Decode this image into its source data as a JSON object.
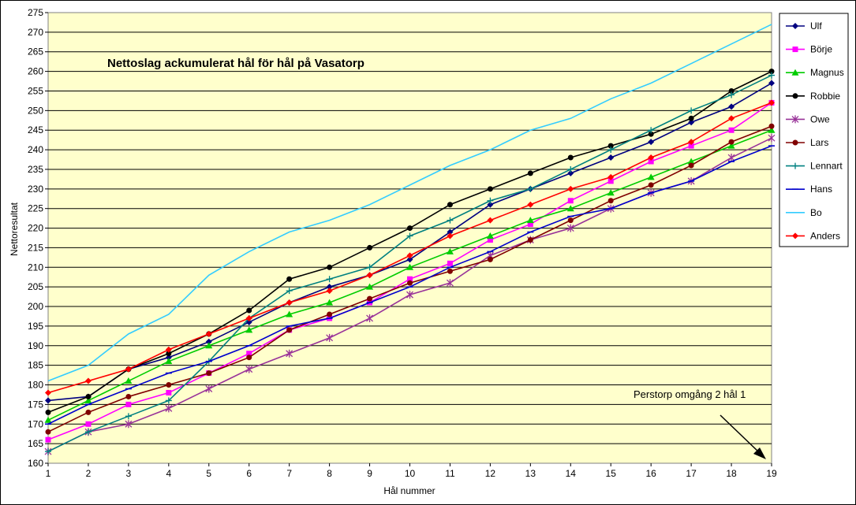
{
  "chart_data": {
    "type": "line",
    "title": "Nettoslag ackumulerat hål för hål på Vasatorp",
    "xlabel": "Hål nummer",
    "ylabel": "Nettoresultat",
    "x": [
      1,
      2,
      3,
      4,
      5,
      6,
      7,
      8,
      9,
      10,
      11,
      12,
      13,
      14,
      15,
      16,
      17,
      18,
      19
    ],
    "xlim": [
      1,
      19
    ],
    "ylim": [
      160,
      275
    ],
    "ytick_step": 5,
    "grid": "horizontal",
    "legend_position": "right",
    "plot_background": "#FFFFCC",
    "annotation": "Perstorp omgång 2 hål 1",
    "series": [
      {
        "name": "Ulf",
        "color": "#000080",
        "marker": "diamond",
        "values": [
          176,
          177,
          184,
          187,
          191,
          196,
          201,
          205,
          208,
          212,
          219,
          226,
          230,
          234,
          238,
          242,
          247,
          251,
          257
        ]
      },
      {
        "name": "Börje",
        "color": "#FF00FF",
        "marker": "square",
        "values": [
          166,
          170,
          175,
          178,
          183,
          188,
          194,
          197,
          201,
          207,
          211,
          217,
          221,
          227,
          232,
          237,
          241,
          245,
          252
        ]
      },
      {
        "name": "Magnus",
        "color": "#00CC00",
        "marker": "triangle",
        "values": [
          171,
          176,
          181,
          186,
          190,
          194,
          198,
          201,
          205,
          210,
          214,
          218,
          222,
          225,
          229,
          233,
          237,
          241,
          245
        ]
      },
      {
        "name": "Robbie",
        "color": "#000000",
        "marker": "circle",
        "values": [
          173,
          177,
          184,
          188,
          193,
          199,
          207,
          210,
          215,
          220,
          226,
          230,
          234,
          238,
          241,
          244,
          248,
          255,
          260
        ]
      },
      {
        "name": "Owe",
        "color": "#993399",
        "marker": "star",
        "values": [
          163,
          168,
          170,
          174,
          179,
          184,
          188,
          192,
          197,
          203,
          206,
          213,
          217,
          220,
          225,
          229,
          232,
          238,
          243
        ]
      },
      {
        "name": "Lars",
        "color": "#800000",
        "marker": "circle",
        "values": [
          168,
          173,
          177,
          180,
          183,
          187,
          194,
          198,
          202,
          206,
          209,
          212,
          217,
          222,
          227,
          231,
          236,
          242,
          246
        ]
      },
      {
        "name": "Lennart",
        "color": "#008080",
        "marker": "plus",
        "values": [
          163,
          168,
          172,
          176,
          186,
          197,
          204,
          207,
          210,
          218,
          222,
          227,
          230,
          235,
          240,
          245,
          250,
          254,
          259
        ]
      },
      {
        "name": "Hans",
        "color": "#0000CC",
        "marker": "dash",
        "values": [
          170,
          175,
          179,
          183,
          186,
          190,
          195,
          197,
          201,
          205,
          210,
          214,
          219,
          223,
          225,
          229,
          232,
          237,
          241
        ]
      },
      {
        "name": "Bo",
        "color": "#33CCFF",
        "marker": "none",
        "values": [
          181,
          185,
          193,
          198,
          208,
          214,
          219,
          222,
          226,
          231,
          236,
          240,
          245,
          248,
          253,
          257,
          262,
          267,
          272
        ]
      },
      {
        "name": "Anders",
        "color": "#FF0000",
        "marker": "diamond",
        "values": [
          178,
          181,
          184,
          189,
          193,
          197,
          201,
          204,
          208,
          213,
          218,
          222,
          226,
          230,
          233,
          238,
          242,
          248,
          252
        ]
      }
    ]
  }
}
